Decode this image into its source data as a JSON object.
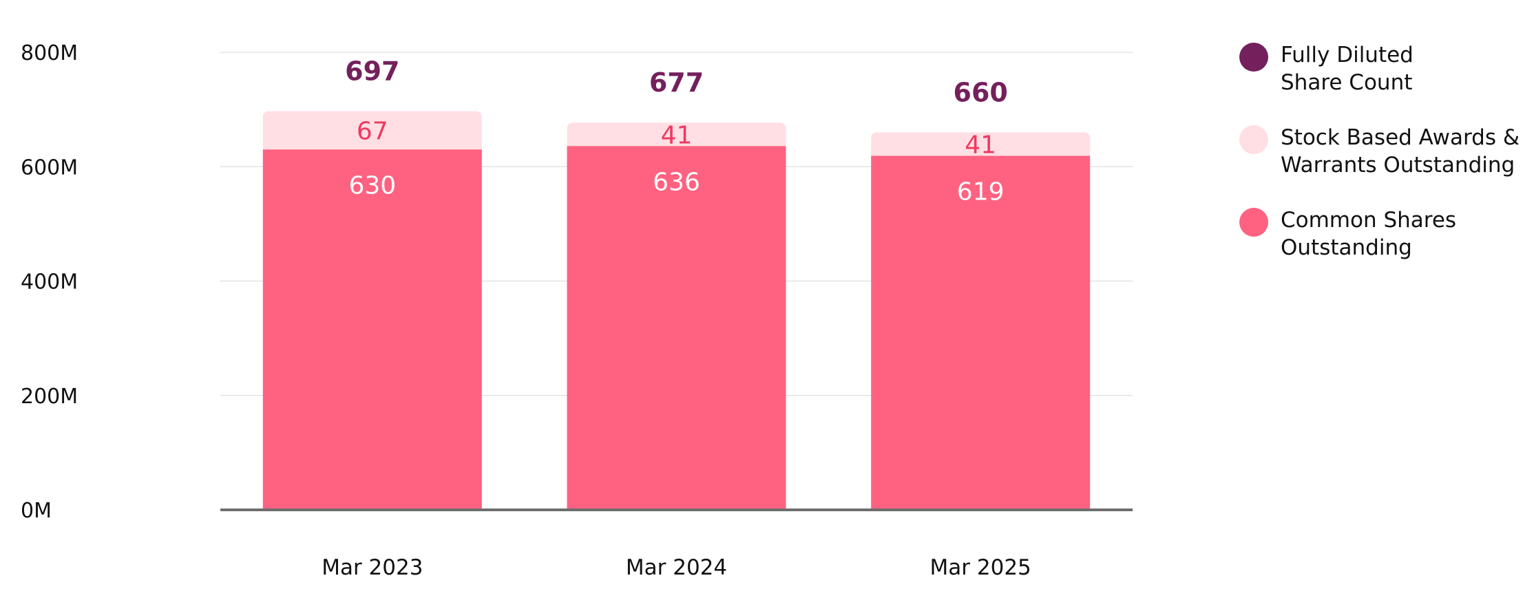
{
  "chart_data": {
    "type": "bar",
    "stacked": true,
    "categories": [
      "Mar 2023",
      "Mar 2024",
      "Mar 2025"
    ],
    "y_ticks": [
      "0M",
      "200M",
      "400M",
      "600M",
      "800M"
    ],
    "ylim": [
      0,
      800
    ],
    "grid": true,
    "legend_position": "right",
    "series": [
      {
        "key": "common",
        "name": "Common Shares\nOutstanding",
        "values": [
          630,
          636,
          619
        ],
        "color": "#FF6281",
        "label_color": "#FFFFFF"
      },
      {
        "key": "awards",
        "name": "Stock Based Awards &\nWarrants Outstanding",
        "values": [
          67,
          41,
          41
        ],
        "color": "#FFDFE4",
        "label_color": "#F0395F"
      }
    ],
    "totals": {
      "name": "Fully Diluted\nShare Count",
      "values": [
        697,
        677,
        660
      ],
      "color": "#74205C"
    }
  }
}
